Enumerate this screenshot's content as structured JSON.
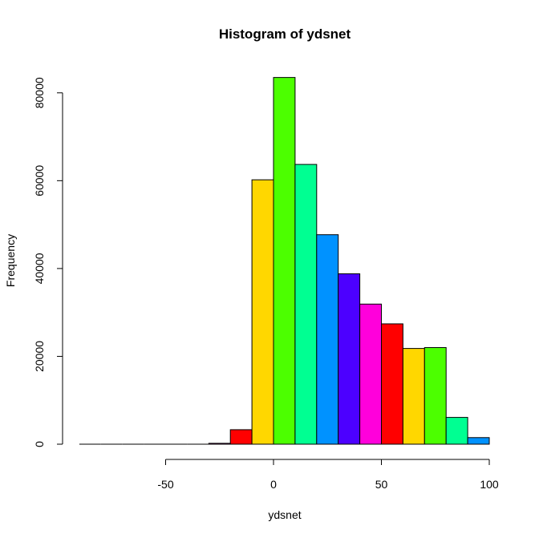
{
  "chart_data": {
    "type": "bar",
    "title": "Histogram of ydsnet",
    "xlabel": "ydsnet",
    "ylabel": "Frequency",
    "xlim": [
      -90,
      100
    ],
    "ylim": [
      0,
      84000
    ],
    "x_ticks": [
      -50,
      0,
      50,
      100
    ],
    "y_ticks": [
      0,
      20000,
      40000,
      60000,
      80000
    ],
    "bins": [
      {
        "x0": -90,
        "x1": -80,
        "value": 0,
        "color": "#FF0000"
      },
      {
        "x0": -80,
        "x1": -70,
        "value": 0,
        "color": "#FFD700"
      },
      {
        "x0": -70,
        "x1": -60,
        "value": 0,
        "color": "#4CFF00"
      },
      {
        "x0": -60,
        "x1": -50,
        "value": 0,
        "color": "#00FF92"
      },
      {
        "x0": -50,
        "x1": -40,
        "value": 0,
        "color": "#0092FF"
      },
      {
        "x0": -40,
        "x1": -30,
        "value": 0,
        "color": "#4C00FF"
      },
      {
        "x0": -30,
        "x1": -20,
        "value": 200,
        "color": "#FF00DB"
      },
      {
        "x0": -20,
        "x1": -10,
        "value": 3300,
        "color": "#FF0000"
      },
      {
        "x0": -10,
        "x1": 0,
        "value": 60200,
        "color": "#FFD700"
      },
      {
        "x0": 0,
        "x1": 10,
        "value": 83500,
        "color": "#4CFF00"
      },
      {
        "x0": 10,
        "x1": 20,
        "value": 63700,
        "color": "#00FF92"
      },
      {
        "x0": 20,
        "x1": 30,
        "value": 47700,
        "color": "#0092FF"
      },
      {
        "x0": 30,
        "x1": 40,
        "value": 38800,
        "color": "#4C00FF"
      },
      {
        "x0": 40,
        "x1": 50,
        "value": 31900,
        "color": "#FF00DB"
      },
      {
        "x0": 50,
        "x1": 60,
        "value": 27400,
        "color": "#FF0000"
      },
      {
        "x0": 60,
        "x1": 70,
        "value": 21800,
        "color": "#FFD700"
      },
      {
        "x0": 70,
        "x1": 80,
        "value": 22000,
        "color": "#4CFF00"
      },
      {
        "x0": 80,
        "x1": 90,
        "value": 6100,
        "color": "#00FF92"
      },
      {
        "x0": 90,
        "x1": 100,
        "value": 1500,
        "color": "#0092FF"
      }
    ],
    "grid": false,
    "legend": "none"
  }
}
